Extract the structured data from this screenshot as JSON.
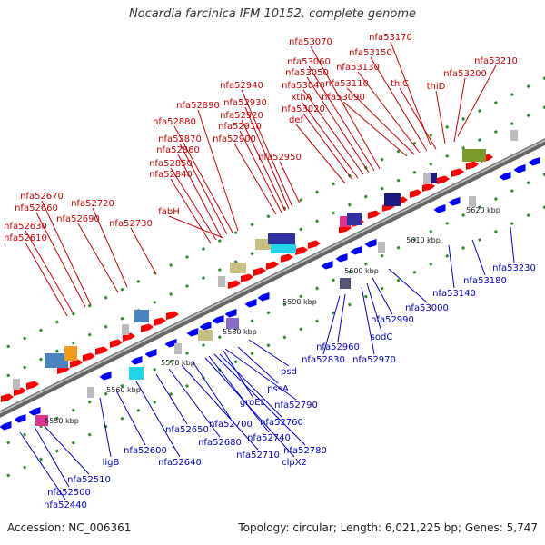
{
  "title": "Nocardia farcinica IFM 10152, complete genome",
  "footer": {
    "accession": "Accession: NC_006361",
    "summary": "Topology: circular; Length: 6,021,225 bp; Genes: 5,747"
  },
  "colors": {
    "forward_strand": "#ff0000",
    "reverse_strand": "#0000ff",
    "backbone": "#888888",
    "dashes": "#2e8b2e",
    "label_forward": "#cc0000",
    "label_reverse": "#0000cc"
  },
  "scale_ticks": [
    "5550 kbp",
    "5560 kbp",
    "5570 kbp",
    "5580 kbp",
    "5590 kbp",
    "5600 kbp",
    "5610 kbp",
    "5620 kbp"
  ],
  "forward_labels": [
    "nfa53170",
    "nfa53070",
    "nfa53150",
    "nfa53060",
    "nfa53130",
    "nfa53210",
    "nfa53050",
    "nfa53200",
    "thiC",
    "nfa53040",
    "nfa53110",
    "thiD",
    "xthA",
    "nfa53090",
    "nfa53020",
    "def",
    "nfa52940",
    "nfa52890",
    "nfa52930",
    "nfa52920",
    "nfa52880",
    "nfa52910",
    "nfa52870",
    "nfa52900",
    "nfa52860",
    "nfa52950",
    "nfa52850",
    "nfa52840",
    "nfa52670",
    "nfa52720",
    "nfa52660",
    "fabH",
    "nfa52690",
    "nfa52730",
    "nfa52630",
    "nfa52610"
  ],
  "reverse_labels": [
    "nfa53230",
    "nfa53180",
    "nfa53140",
    "nfa53000",
    "nfa52990",
    "sodC",
    "nfa52960",
    "nfa52830",
    "nfa52970",
    "psd",
    "pssA",
    "nfa52790",
    "groEL",
    "nfa52760",
    "nfa52740",
    "nfa52780",
    "clpX2",
    "nfa52700",
    "nfa52650",
    "nfa52680",
    "nfa52710",
    "nfa52600",
    "nfa52640",
    "ligB",
    "nfa52510",
    "nfa52500",
    "nfa52440"
  ]
}
